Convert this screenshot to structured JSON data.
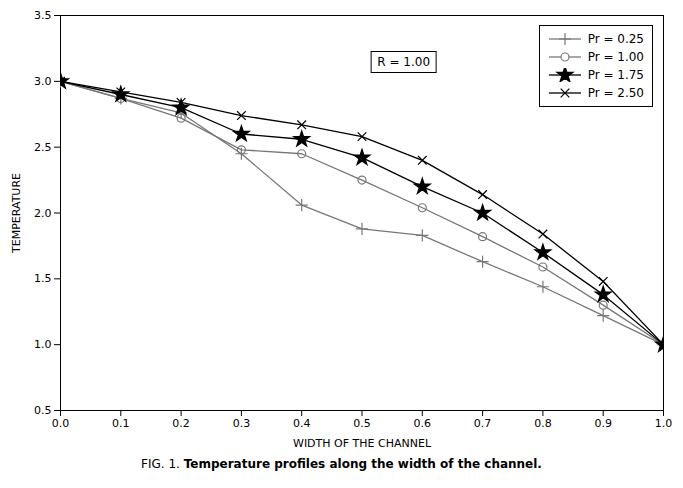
{
  "chart_data": {
    "type": "line",
    "x": [
      0.0,
      0.1,
      0.2,
      0.3,
      0.4,
      0.5,
      0.6,
      0.7,
      0.8,
      0.9,
      1.0
    ],
    "series": [
      {
        "name": "Pr = 0.25",
        "color": "#777777",
        "marker": "plus",
        "values": [
          3.0,
          2.87,
          2.76,
          2.45,
          2.06,
          1.88,
          1.83,
          1.63,
          1.44,
          1.22,
          1.0
        ]
      },
      {
        "name": "Pr = 1.00",
        "color": "#777777",
        "marker": "circle",
        "values": [
          3.0,
          2.87,
          2.72,
          2.48,
          2.45,
          2.25,
          2.04,
          1.82,
          1.59,
          1.3,
          1.0
        ]
      },
      {
        "name": "Pr = 1.75",
        "color": "#000000",
        "marker": "star",
        "values": [
          3.0,
          2.9,
          2.8,
          2.6,
          2.56,
          2.42,
          2.2,
          2.0,
          1.7,
          1.38,
          1.0
        ]
      },
      {
        "name": "Pr = 2.50",
        "color": "#000000",
        "marker": "times",
        "values": [
          3.0,
          2.92,
          2.84,
          2.74,
          2.67,
          2.58,
          2.4,
          2.14,
          1.84,
          1.48,
          1.0
        ]
      }
    ],
    "xlabel": "WIDTH OF THE CHANNEL",
    "ylabel": "TEMPERATURE",
    "xlim": [
      0.0,
      1.0
    ],
    "ylim": [
      0.5,
      3.5
    ],
    "xticks": [
      {
        "value": 0.0,
        "label": "0.0"
      },
      0.1,
      0.2,
      0.3,
      0.4,
      0.5,
      0.6,
      0.7,
      0.8,
      0.9,
      {
        "value": 1.0,
        "label": "1.0"
      }
    ],
    "yticks": [
      0.5,
      {
        "value": 1.0,
        "label": "1.0"
      },
      1.5,
      {
        "value": 2.0,
        "label": "2.0"
      },
      2.5,
      {
        "value": 3.0,
        "label": "3.0"
      },
      3.5
    ],
    "legend": "upper right",
    "annotations": [
      "R = 1.00"
    ],
    "caption": [
      "FIG. 1.",
      "Temperature profiles along the width of the channel."
    ]
  }
}
